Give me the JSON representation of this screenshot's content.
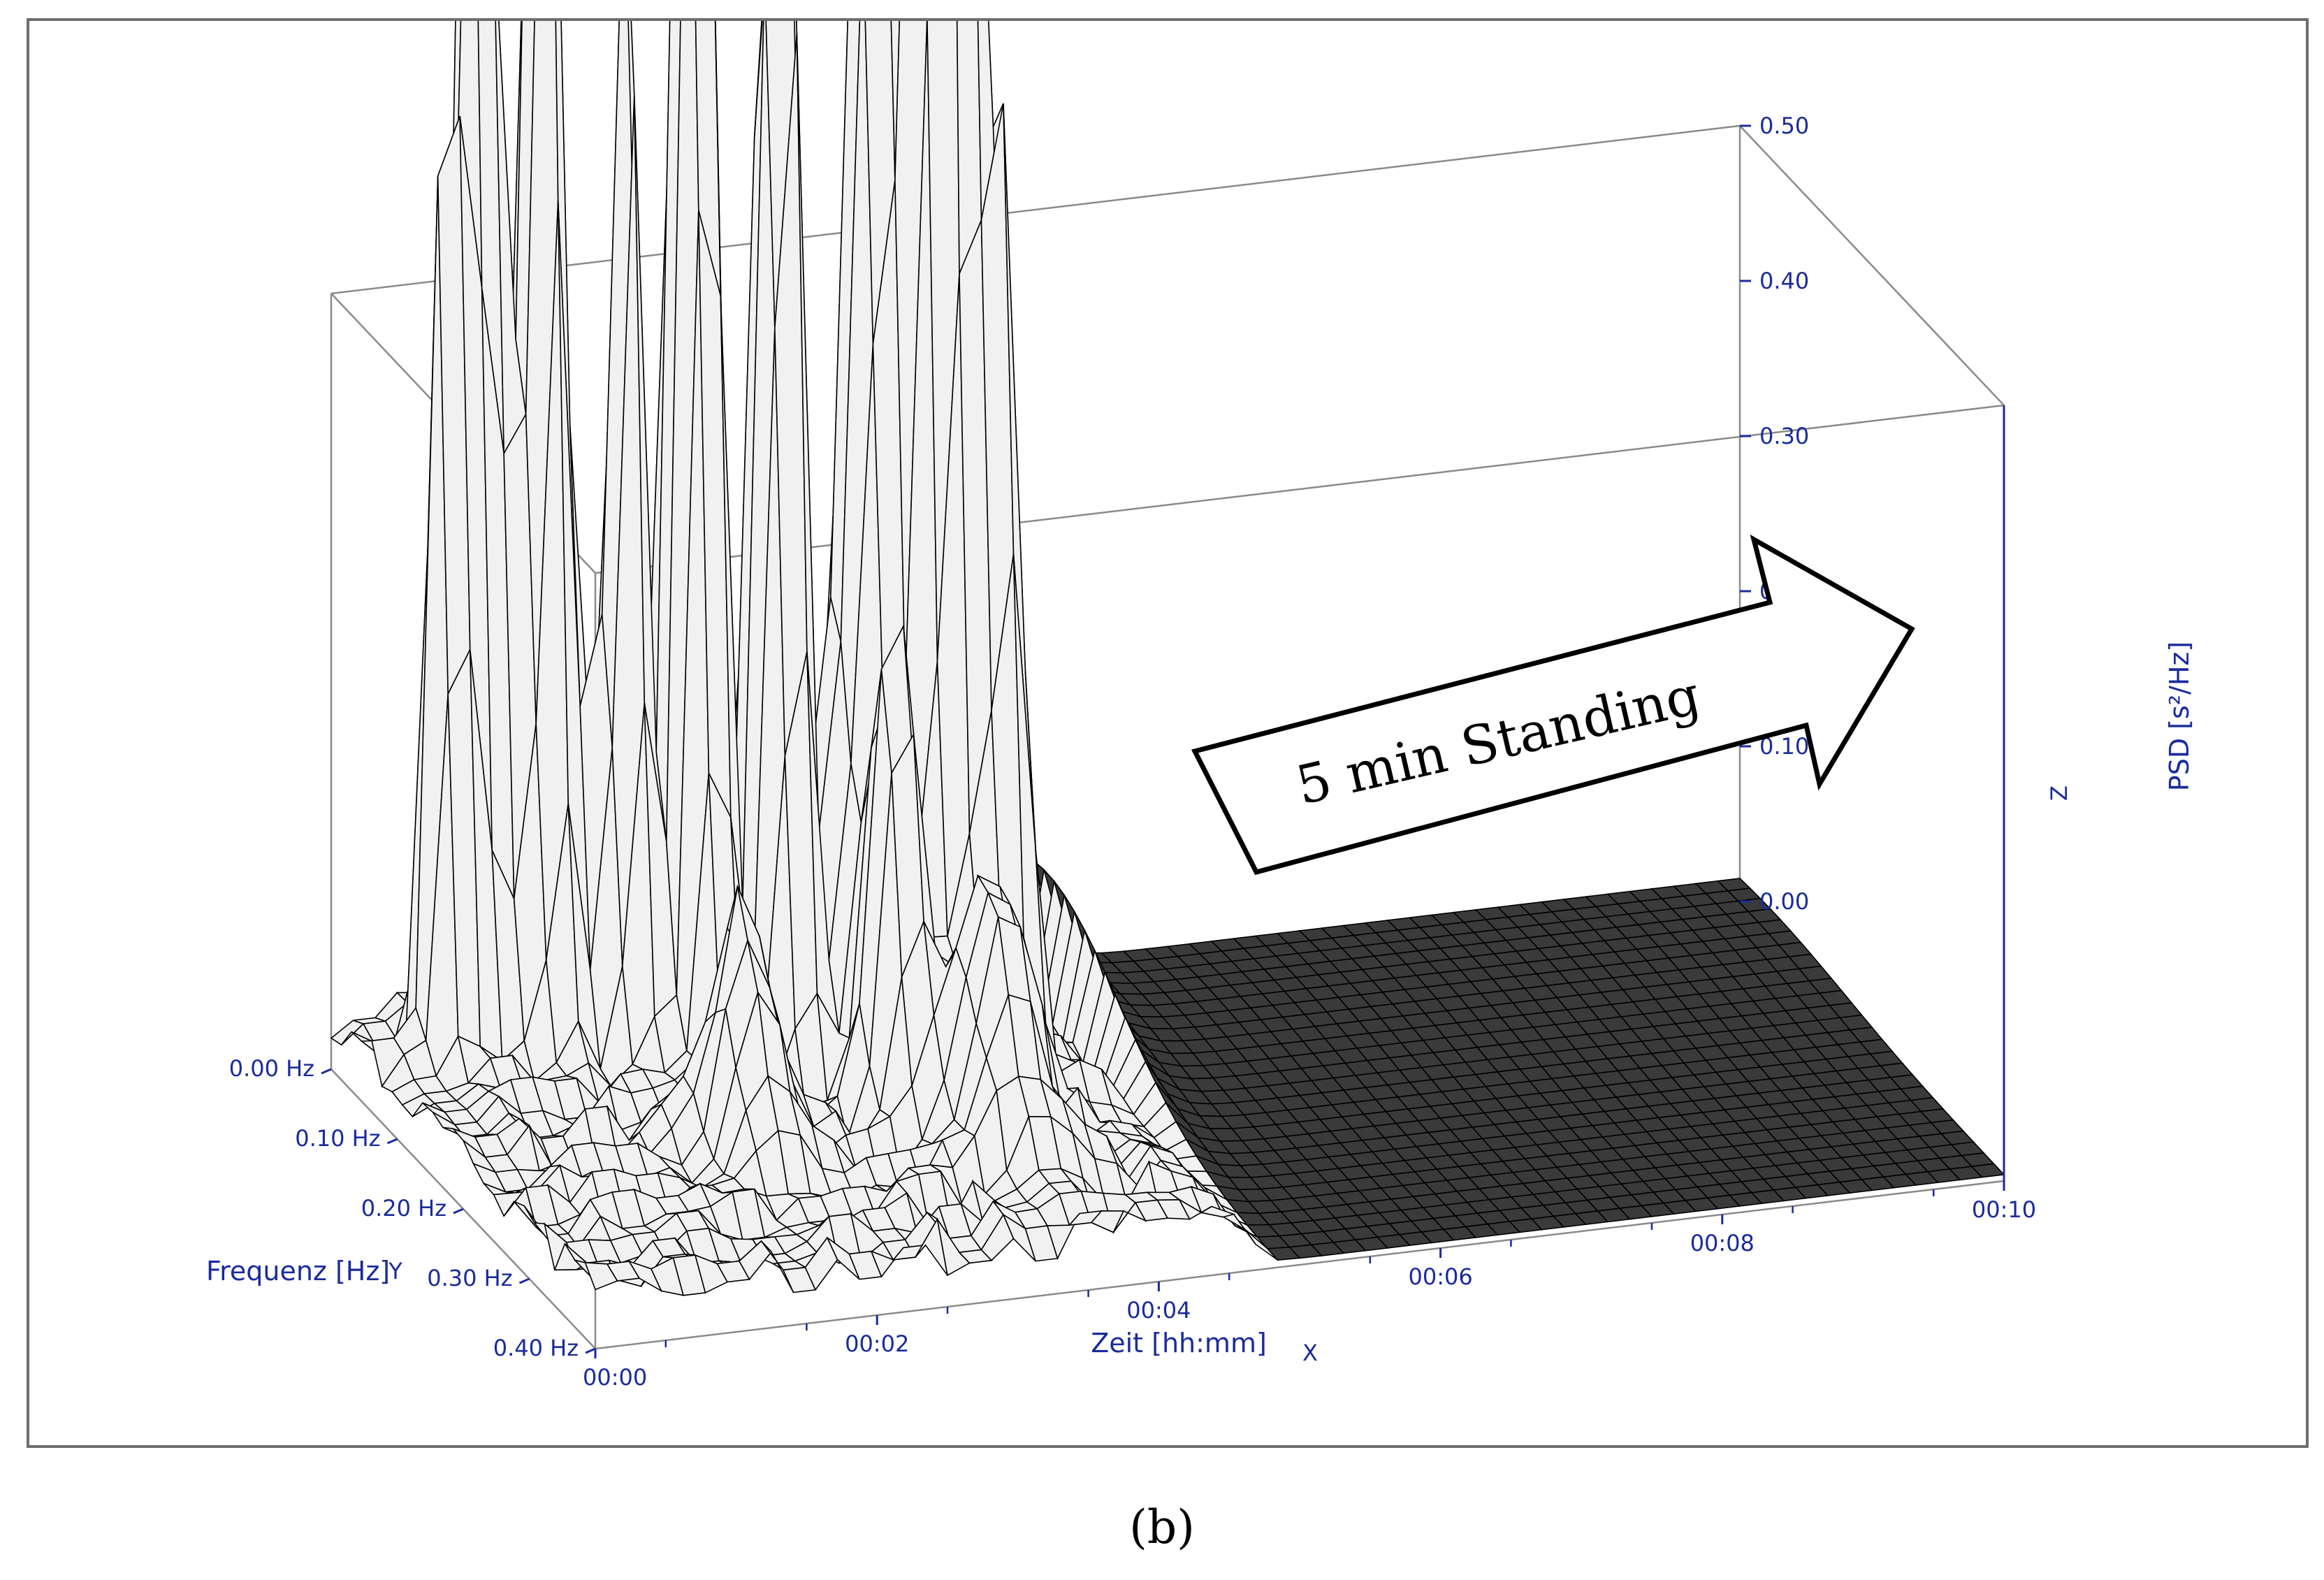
{
  "chart_data": {
    "type": "surface",
    "z_axis_letter": "Z",
    "x_axis_letter": "X",
    "y_axis_letter": "Y",
    "xlabel": "Zeit [hh:mm]",
    "ylabel": "Frequenz [Hz]",
    "zlabel": "PSD [s²/Hz]",
    "x_ticks": [
      "00:00",
      "00:02",
      "00:04",
      "00:06",
      "00:08",
      "00:10"
    ],
    "y_ticks": [
      "0.00 Hz",
      "0.10 Hz",
      "0.20 Hz",
      "0.30 Hz",
      "0.40 Hz"
    ],
    "z_ticks": [
      "0.00",
      "0.10",
      "0.20",
      "0.30",
      "0.40",
      "0.50"
    ],
    "xlim_minutes": [
      0,
      10
    ],
    "ylim_hz": [
      0,
      0.4
    ],
    "zlim": [
      0,
      0.5
    ],
    "standing_start_minutes": 4.8,
    "annotation": "5 min Standing",
    "caption": "(b)",
    "grid": false,
    "colors": {
      "axis_text": "#1a2b9c",
      "surface": "#f1f1f1",
      "mesh": "#000000"
    }
  }
}
